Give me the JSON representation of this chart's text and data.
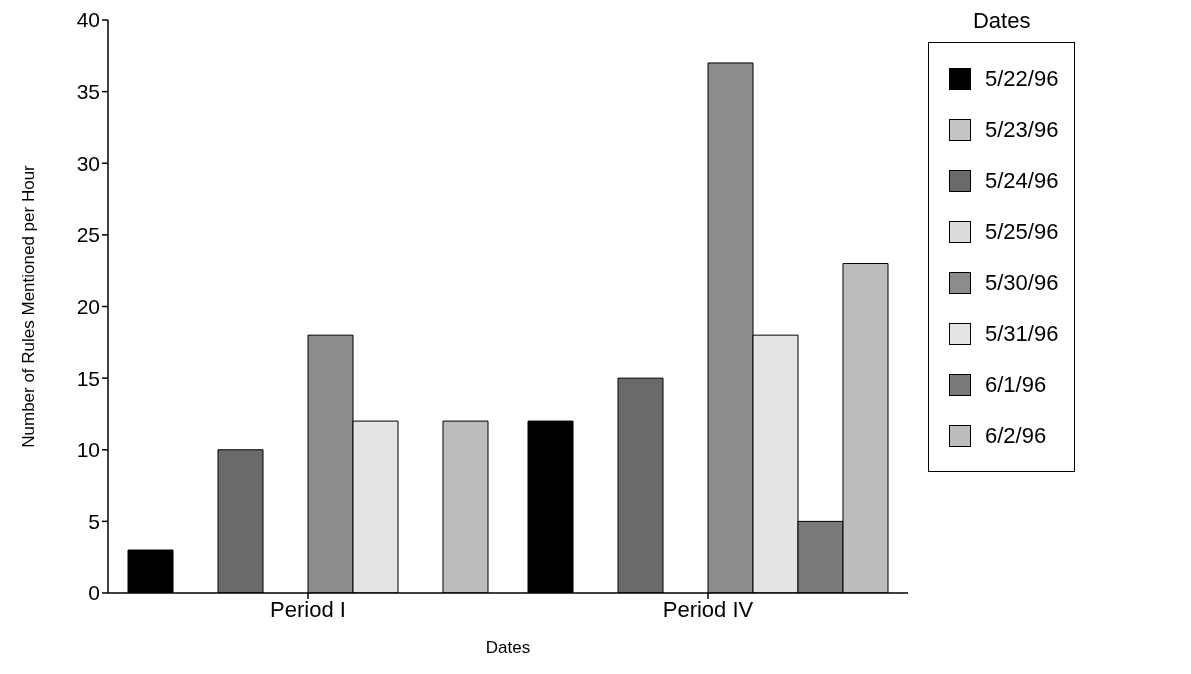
{
  "chart_data": {
    "type": "bar",
    "xlabel": "Dates",
    "ylabel": "Number of Rules Mentioned per Hour",
    "legend_title": "Dates",
    "categories": [
      "Period I",
      "Period IV"
    ],
    "series": [
      {
        "name": "5/22/96",
        "color": "#000000",
        "values": [
          3,
          12
        ]
      },
      {
        "name": "5/23/96",
        "color": "#c4c4c4",
        "values": [
          null,
          null
        ]
      },
      {
        "name": "5/24/96",
        "color": "#6a6a6a",
        "values": [
          10,
          15
        ]
      },
      {
        "name": "5/25/96",
        "color": "#dcdcdc",
        "values": [
          null,
          null
        ]
      },
      {
        "name": "5/30/96",
        "color": "#8c8c8c",
        "values": [
          18,
          37
        ]
      },
      {
        "name": "5/31/96",
        "color": "#e4e4e4",
        "values": [
          12,
          18
        ]
      },
      {
        "name": "6/1/96",
        "color": "#7a7a7a",
        "values": [
          null,
          5
        ]
      },
      {
        "name": "6/2/96",
        "color": "#bcbcbc",
        "values": [
          12,
          23
        ]
      }
    ],
    "ylim": [
      0,
      40
    ],
    "yticks": [
      0,
      5,
      10,
      15,
      20,
      25,
      30,
      35,
      40
    ],
    "grid": false,
    "legend": "right"
  }
}
